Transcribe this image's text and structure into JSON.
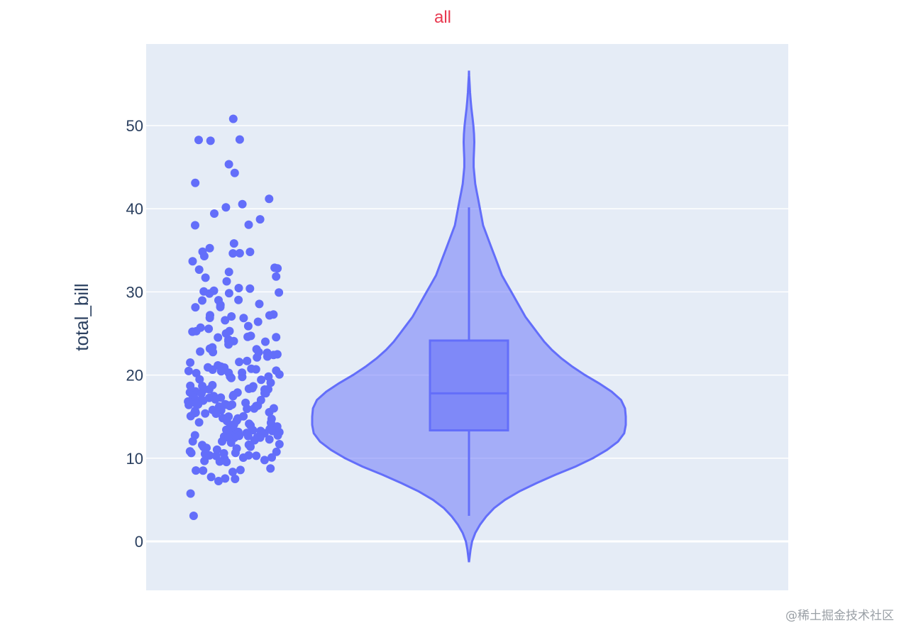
{
  "chart_data": {
    "type": "violin",
    "title": "all",
    "ylabel": "total_bill",
    "xlabel": "",
    "ylim": [
      -5.8,
      59.8
    ],
    "yticks": [
      0,
      10,
      20,
      30,
      40,
      50
    ],
    "grid": true,
    "colors": {
      "title": "#e8384f",
      "plot_bg": "#e5ecf6",
      "grid": "#ffffff",
      "series": "#636efa",
      "axis_text": "#2a3f5f"
    },
    "box": {
      "q1": 13.35,
      "median": 17.8,
      "q3": 24.15,
      "lower_fence": 3.07,
      "upper_fence": 40.17
    },
    "violin_range": [
      -2.5,
      56.6
    ],
    "violin_density": [
      [
        -2.5,
        0.0
      ],
      [
        -1.0,
        0.01
      ],
      [
        0.0,
        0.02
      ],
      [
        1.0,
        0.04
      ],
      [
        2.0,
        0.07
      ],
      [
        3.0,
        0.11
      ],
      [
        4.0,
        0.16
      ],
      [
        5.0,
        0.23
      ],
      [
        6.0,
        0.32
      ],
      [
        7.0,
        0.43
      ],
      [
        8.0,
        0.55
      ],
      [
        9.0,
        0.68
      ],
      [
        10.0,
        0.79
      ],
      [
        11.0,
        0.88
      ],
      [
        12.0,
        0.95
      ],
      [
        13.0,
        0.99
      ],
      [
        14.0,
        1.0
      ],
      [
        15.0,
        1.0
      ],
      [
        16.0,
        0.995
      ],
      [
        17.0,
        0.97
      ],
      [
        18.0,
        0.91
      ],
      [
        19.0,
        0.83
      ],
      [
        20.0,
        0.74
      ],
      [
        21.0,
        0.66
      ],
      [
        22.0,
        0.59
      ],
      [
        23.0,
        0.53
      ],
      [
        24.0,
        0.48
      ],
      [
        25.0,
        0.44
      ],
      [
        26.0,
        0.4
      ],
      [
        27.0,
        0.36
      ],
      [
        28.0,
        0.33
      ],
      [
        29.0,
        0.3
      ],
      [
        30.0,
        0.27
      ],
      [
        31.0,
        0.24
      ],
      [
        32.0,
        0.21
      ],
      [
        33.0,
        0.19
      ],
      [
        34.0,
        0.17
      ],
      [
        35.0,
        0.15
      ],
      [
        36.0,
        0.13
      ],
      [
        37.0,
        0.11
      ],
      [
        38.0,
        0.09
      ],
      [
        39.0,
        0.08
      ],
      [
        40.0,
        0.07
      ],
      [
        41.0,
        0.06
      ],
      [
        42.0,
        0.05
      ],
      [
        43.0,
        0.04
      ],
      [
        44.0,
        0.035
      ],
      [
        45.0,
        0.03
      ],
      [
        46.0,
        0.03
      ],
      [
        47.0,
        0.032
      ],
      [
        48.0,
        0.034
      ],
      [
        49.0,
        0.032
      ],
      [
        50.0,
        0.028
      ],
      [
        51.0,
        0.022
      ],
      [
        52.0,
        0.016
      ],
      [
        53.0,
        0.011
      ],
      [
        54.0,
        0.007
      ],
      [
        55.0,
        0.004
      ],
      [
        56.0,
        0.001
      ],
      [
        56.6,
        0.0
      ]
    ],
    "points_y": [
      50.81,
      48.33,
      48.27,
      48.17,
      45.35,
      44.3,
      43.11,
      41.19,
      40.55,
      40.17,
      39.42,
      38.73,
      38.07,
      38.01,
      35.83,
      35.26,
      34.81,
      34.83,
      34.65,
      34.63,
      34.3,
      33.68,
      32.9,
      32.83,
      32.68,
      32.4,
      31.85,
      31.71,
      31.27,
      30.46,
      30.4,
      30.14,
      30.06,
      29.93,
      29.85,
      29.8,
      29.03,
      29.0,
      28.97,
      28.55,
      28.44,
      28.17,
      28.15,
      27.28,
      27.2,
      27.18,
      27.05,
      26.88,
      26.86,
      26.59,
      26.41,
      25.89,
      25.71,
      25.56,
      25.29,
      25.28,
      25.21,
      25.0,
      24.71,
      24.59,
      24.55,
      24.52,
      24.27,
      24.08,
      24.06,
      24.01,
      23.95,
      23.68,
      23.33,
      23.17,
      23.1,
      22.82,
      22.76,
      22.75,
      22.67,
      22.49,
      22.42,
      22.23,
      22.12,
      21.7,
      21.58,
      21.5,
      21.16,
      21.01,
      20.92,
      20.9,
      20.76,
      20.69,
      20.65,
      20.53,
      20.49,
      20.45,
      20.29,
      20.27,
      20.23,
      20.08,
      19.82,
      19.81,
      19.77,
      19.65,
      19.49,
      19.44,
      19.08,
      18.78,
      18.71,
      18.69,
      18.64,
      18.43,
      18.35,
      18.29,
      18.28,
      18.26,
      18.24,
      18.15,
      18.04,
      17.92,
      17.89,
      17.82,
      17.81,
      17.78,
      17.59,
      17.51,
      17.47,
      17.46,
      17.31,
      17.29,
      17.26,
      17.07,
      16.99,
      16.97,
      16.93,
      16.82,
      16.66,
      16.58,
      16.49,
      16.47,
      16.45,
      16.43,
      16.4,
      16.32,
      16.29,
      16.27,
      16.21,
      16.0,
      15.98,
      15.95,
      15.81,
      15.77,
      15.69,
      15.53,
      15.48,
      15.42,
      15.38,
      15.36,
      15.06,
      15.04,
      15.01,
      14.83,
      14.78,
      14.73,
      14.52,
      14.48,
      14.31,
      14.26,
      14.15,
      14.07,
      14.0,
      13.94,
      13.9,
      13.81,
      13.51,
      13.42,
      13.39,
      13.37,
      13.28,
      13.27,
      13.16,
      13.13,
      13.03,
      13.0,
      12.9,
      12.76,
      12.74,
      12.69,
      12.66,
      12.6,
      12.54,
      12.48,
      12.46,
      12.43,
      12.26,
      12.16,
      12.03,
      12.02,
      11.87,
      11.69,
      11.61,
      11.59,
      11.38,
      11.35,
      11.24,
      11.17,
      11.02,
      10.83,
      10.77,
      10.65,
      10.63,
      10.59,
      10.51,
      10.34,
      10.33,
      10.29,
      10.27,
      10.09,
      10.07,
      9.94,
      9.78,
      9.68,
      9.6,
      9.55,
      8.77,
      8.58,
      8.52,
      8.51,
      8.35,
      7.74,
      7.56,
      7.51,
      7.25,
      5.75,
      3.07
    ]
  },
  "watermark": "@稀土掘金技术社区"
}
